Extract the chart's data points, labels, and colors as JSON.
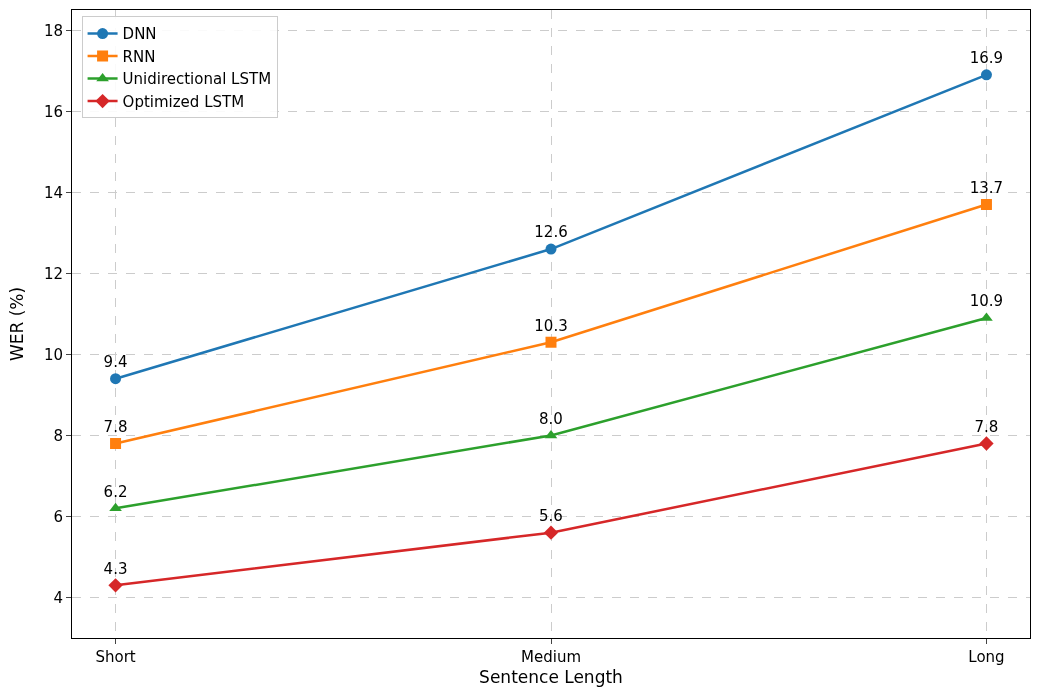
{
  "chart_data": {
    "type": "line",
    "xlabel": "Sentence Length",
    "ylabel": "WER (%)",
    "categories": [
      "Short",
      "Medium",
      "Long"
    ],
    "series": [
      {
        "name": "DNN",
        "color": "#1f77b4",
        "values": [
          9.4,
          12.6,
          16.9
        ],
        "value_labels": [
          "9.4",
          "12.6",
          "16.9"
        ],
        "marker": "circle"
      },
      {
        "name": "RNN",
        "color": "#ff7f0e",
        "values": [
          7.8,
          10.3,
          13.7
        ],
        "value_labels": [
          "7.8",
          "10.3",
          "13.7"
        ],
        "marker": "square"
      },
      {
        "name": "Unidirectional LSTM",
        "color": "#2ca02c",
        "values": [
          6.2,
          8.0,
          10.9
        ],
        "value_labels": [
          "6.2",
          "8.0",
          "10.9"
        ],
        "marker": "triangle"
      },
      {
        "name": "Optimized LSTM",
        "color": "#d62728",
        "values": [
          4.3,
          5.6,
          7.8
        ],
        "value_labels": [
          "4.3",
          "5.6",
          "7.8"
        ],
        "marker": "diamond"
      }
    ],
    "ylim": [
      3,
      18.5
    ],
    "yticks": [
      4,
      6,
      8,
      10,
      12,
      14,
      16,
      18
    ],
    "grid": true,
    "legend": "top left",
    "line_style": "solid"
  }
}
